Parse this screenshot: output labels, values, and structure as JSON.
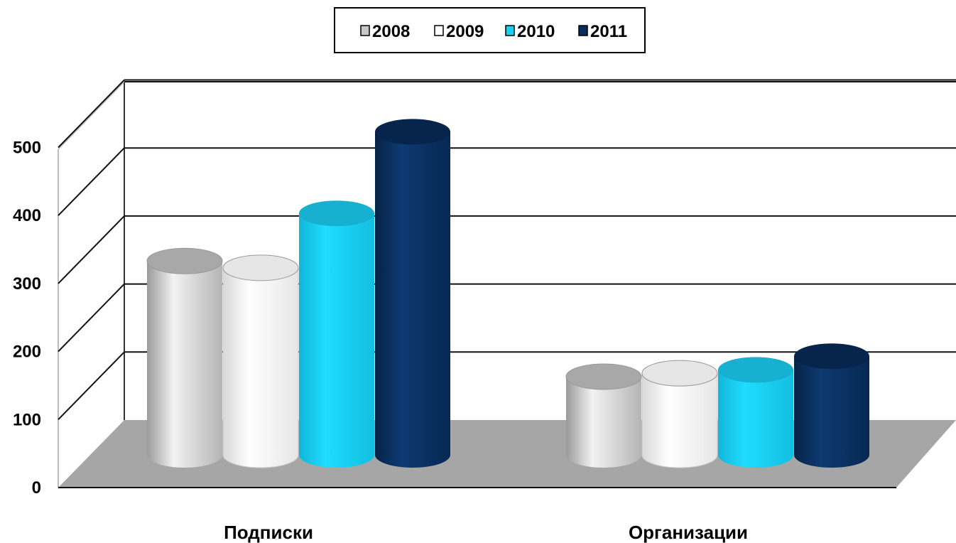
{
  "chart_data": {
    "type": "bar",
    "style": "3d-cylinder",
    "categories": [
      "Подписки",
      "Организации"
    ],
    "series": [
      {
        "name": "2008",
        "values": [
          285,
          115
        ],
        "color": "#d4d4d4"
      },
      {
        "name": "2009",
        "values": [
          275,
          120
        ],
        "color": "#ffffff"
      },
      {
        "name": "2010",
        "values": [
          355,
          125
        ],
        "color": "#1ad0f2"
      },
      {
        "name": "2011",
        "values": [
          475,
          145
        ],
        "color": "#0a2e5c"
      }
    ],
    "yticks": [
      "0",
      "100",
      "200",
      "300",
      "400",
      "500"
    ],
    "ylim": [
      0,
      500
    ],
    "grid": true,
    "legend_position": "top-center",
    "floor_color": "#a6a6a6"
  }
}
